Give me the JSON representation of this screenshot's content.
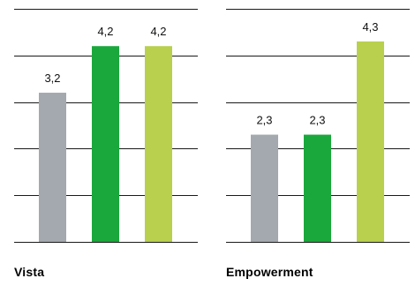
{
  "chart_data": [
    {
      "type": "bar",
      "title": "Vista",
      "categories": [
        "",
        "",
        ""
      ],
      "values": [
        3.2,
        4.2,
        4.2
      ],
      "value_labels": [
        "3,2",
        "4,2",
        "4,2"
      ],
      "colors": [
        "#a3a9ae",
        "#1aa83c",
        "#b8d04d"
      ],
      "ylim": [
        0,
        5
      ],
      "gridlines": [
        0,
        1,
        2,
        3,
        4,
        5
      ],
      "grid": true,
      "legend": "none"
    },
    {
      "type": "bar",
      "title": "Empowerment",
      "categories": [
        "",
        "",
        ""
      ],
      "values": [
        2.3,
        2.3,
        4.3
      ],
      "value_labels": [
        "2,3",
        "2,3",
        "4,3"
      ],
      "colors": [
        "#a3a9ae",
        "#1aa83c",
        "#b8d04d"
      ],
      "ylim": [
        0,
        5
      ],
      "gridlines": [
        0,
        1,
        2,
        3,
        4,
        5
      ],
      "grid": true,
      "legend": "none"
    }
  ]
}
